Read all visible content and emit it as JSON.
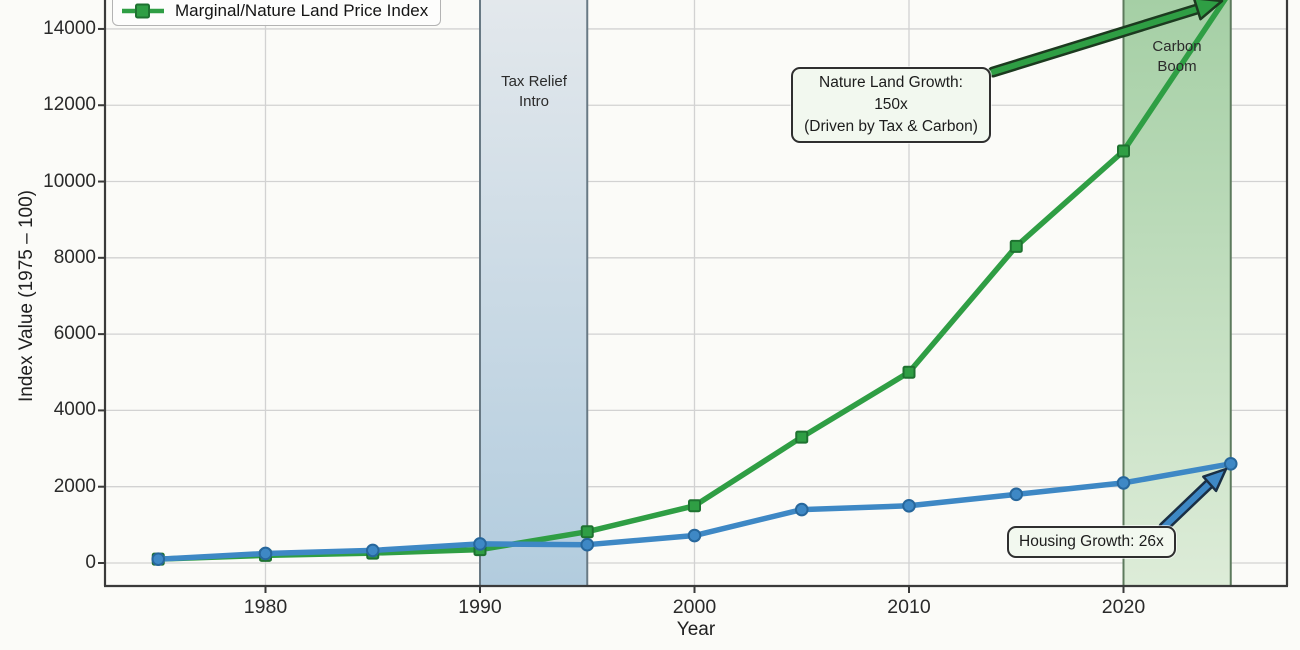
{
  "chart_data": {
    "type": "line",
    "title": "",
    "xlabel": "Year",
    "ylabel": "Index Value (1975 – 100)",
    "x_ticks": [
      1980,
      1990,
      2000,
      2010,
      2020
    ],
    "y_ticks": [
      0,
      2000,
      4000,
      6000,
      8000,
      10000,
      12000,
      14000
    ],
    "x": [
      1975,
      1980,
      1985,
      1990,
      1995,
      2000,
      2005,
      2010,
      2015,
      2020,
      2025
    ],
    "series": [
      {
        "id": "nature-land-index",
        "legend_label": "Marginal/Nature Land Price Index",
        "color": "#2f9e44",
        "marker_edge": "#1e7230",
        "marker": "square",
        "values": [
          100,
          200,
          260,
          350,
          820,
          1500,
          3300,
          5000,
          8300,
          10800,
          15000
        ]
      },
      {
        "id": "housing-index",
        "legend_label": "",
        "color": "#3e88c5",
        "marker_edge": "#27679c",
        "marker": "circle",
        "values": [
          100,
          250,
          330,
          500,
          480,
          720,
          1400,
          1500,
          1800,
          2100,
          2600
        ]
      }
    ],
    "bands": [
      {
        "x_start": 1990,
        "x_end": 1995,
        "label": "Tax Relief\nIntro",
        "fill_top": "#e3e8ec",
        "fill_bottom": "#b2ccde",
        "edge": "#68798416"
      },
      {
        "x_start": 2020,
        "x_end": 2025,
        "label": "Carbon\nBoom",
        "fill_top": "#a5cfa5",
        "fill_bottom": "#ddecd8",
        "edge": "#5d7a5d"
      }
    ],
    "annotations": {
      "nature_growth_line1": "Nature Land Growth: 150x",
      "nature_growth_line2": "(Driven by Tax & Carbon)",
      "housing_growth": "Housing Growth: 26x"
    },
    "legend_position": "upper-left",
    "grid": true,
    "ylim_visible": [
      0,
      14750
    ],
    "xlim_visible": [
      1972.6,
      2027.6
    ]
  },
  "colors": {
    "green_line": "#2f9e44",
    "blue_line": "#3e88c5",
    "grid": "#d2d2d2",
    "spine": "#3a3a3a",
    "green_arrow_outline": "#1c3a1f",
    "blue_arrow_outline": "#1a2f45",
    "annotation_bg": "#f2f8ef",
    "annotation_border": "#2f2f2f"
  }
}
